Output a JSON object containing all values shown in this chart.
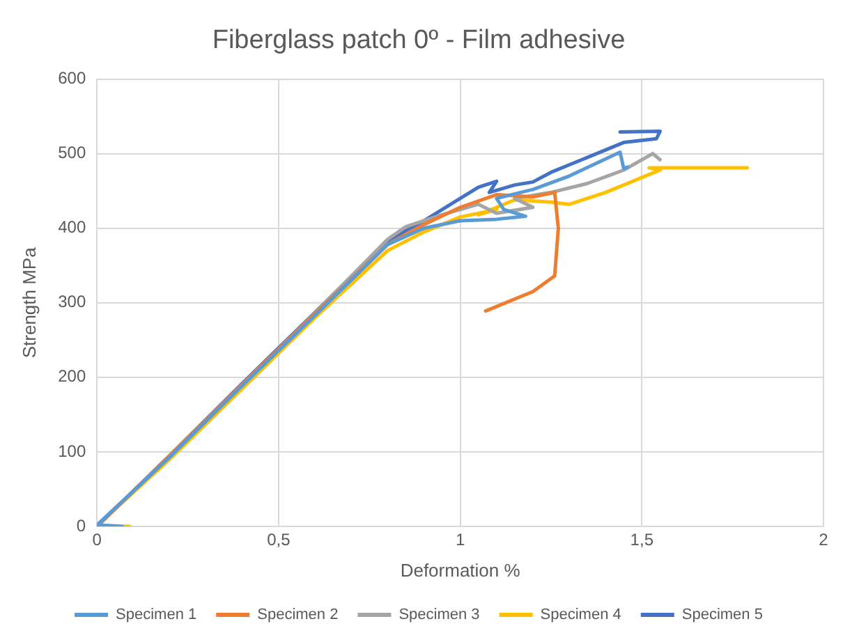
{
  "chart_data": {
    "type": "line",
    "title": "Fiberglass patch 0º - Film adhesive",
    "xlabel": "Deformation %",
    "ylabel": "Strength MPa",
    "xlim": [
      0,
      2
    ],
    "xticks": [
      {
        "value": 0,
        "label": "0"
      },
      {
        "value": 0.5,
        "label": "0,5"
      },
      {
        "value": 1,
        "label": "1"
      },
      {
        "value": 1.5,
        "label": "1,5"
      },
      {
        "value": 2,
        "label": "2"
      }
    ],
    "ylim": [
      0,
      600
    ],
    "yticks": [
      0,
      100,
      200,
      300,
      400,
      500,
      600
    ],
    "grid": true,
    "legend": "bottom",
    "marker": "none",
    "line_style": "solid",
    "series": [
      {
        "name": "Specimen 1",
        "color": "#5b9bd5",
        "x": [
          0.07,
          0,
          0.2,
          0.4,
          0.6,
          0.8,
          0.9,
          1.0,
          1.1,
          1.18,
          1.12,
          1.1,
          1.2,
          1.3,
          1.44,
          1.45,
          1.46
        ],
        "values": [
          0,
          2,
          93,
          189,
          283,
          378,
          400,
          410,
          412,
          416,
          425,
          440,
          452,
          470,
          502,
          480,
          482
        ]
      },
      {
        "name": "Specimen 2",
        "color": "#ed7d31",
        "x": [
          0,
          0.2,
          0.4,
          0.6,
          0.8,
          0.9,
          1.0,
          1.1,
          1.2,
          1.26,
          1.27,
          1.26,
          1.2,
          1.07
        ],
        "values": [
          0,
          95,
          191,
          285,
          378,
          405,
          428,
          445,
          442,
          448,
          400,
          336,
          315,
          289
        ]
      },
      {
        "name": "Specimen 3",
        "color": "#a5a5a5",
        "x": [
          0,
          0.2,
          0.4,
          0.6,
          0.8,
          0.85,
          0.95,
          1.05,
          1.1,
          1.2,
          1.15,
          1.25,
          1.35,
          1.45,
          1.53,
          1.55
        ],
        "values": [
          0,
          94,
          190,
          286,
          385,
          402,
          418,
          432,
          420,
          428,
          440,
          448,
          460,
          478,
          500,
          492
        ]
      },
      {
        "name": "Specimen 4",
        "color": "#ffc000",
        "x": [
          0.09,
          0,
          0.2,
          0.4,
          0.6,
          0.8,
          0.9,
          1.0,
          1.1,
          1.05,
          1.15,
          1.25,
          1.3,
          1.4,
          1.5,
          1.55,
          1.52,
          1.79
        ],
        "values": [
          0,
          1,
          90,
          185,
          280,
          370,
          395,
          415,
          425,
          418,
          438,
          435,
          432,
          448,
          468,
          478,
          481,
          481
        ]
      },
      {
        "name": "Specimen 5",
        "color": "#4472c4",
        "x": [
          0,
          0.2,
          0.4,
          0.6,
          0.8,
          0.9,
          1.0,
          1.05,
          1.1,
          1.08,
          1.15,
          1.2,
          1.25,
          1.3,
          1.4,
          1.45,
          1.54,
          1.55,
          1.44
        ],
        "values": [
          0,
          95,
          192,
          287,
          383,
          410,
          440,
          455,
          463,
          448,
          458,
          462,
          475,
          485,
          505,
          515,
          520,
          530,
          529
        ]
      }
    ]
  }
}
